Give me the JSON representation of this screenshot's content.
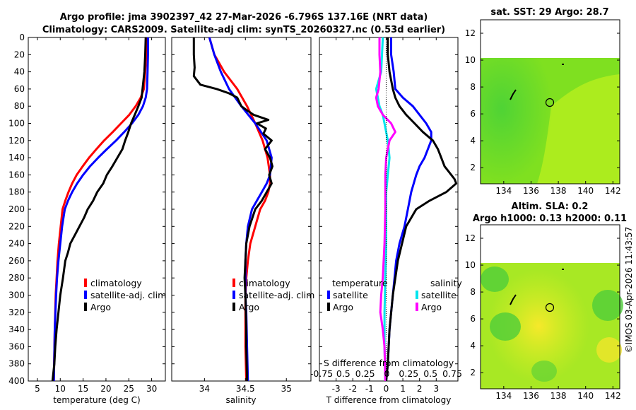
{
  "page": {
    "title_line1": "Argo profile: jma 3902397_42 27-Mar-2026 -6.796S 137.16E (NRT data)",
    "title_line2": "Climatology: CARS2009. Satellite-adj clim: synTS_20260327.nc (0.53d earlier)",
    "footer": "©IMOS 03-Apr-2026 11:43:57"
  },
  "colors": {
    "climatology": "#ff0000",
    "satellite": "#0000ff",
    "argo": "#000000",
    "sat_diff_s": "#00e5ee",
    "argo_diff_s": "#ff00ff"
  },
  "legend_temp": {
    "climatology": "climatology",
    "satellite": "satellite-adj. clim",
    "argo": "Argo"
  },
  "legend_sal": {
    "climatology": "climatology",
    "satellite": "satellite-adj. clim",
    "argo": "Argo"
  },
  "legend_diff": {
    "temp_header": "temperature",
    "sal_header": "salinity",
    "temp_satellite": "satellite",
    "temp_argo": "Argo",
    "sal_satellite": "satellite",
    "sal_argo": "Argo",
    "s_axis_title": "S difference from climatology",
    "s_axis_ticks": [
      "-0.75",
      "0.5",
      "0.25",
      "0",
      "0.25",
      "0.5",
      "0.75"
    ]
  },
  "maps": {
    "sst_title": "sat. SST: 29 Argo: 28.7",
    "sla_title_line1": "Altim. SLA: 0.2",
    "sla_title_line2": "Argo h1000: 0.13 h2000: 0.11",
    "x_ticks": [
      "134",
      "136",
      "138",
      "140",
      "142"
    ],
    "y_ticks": [
      "2",
      "4",
      "6",
      "8",
      "10",
      "12"
    ],
    "float_lon": 137.16,
    "float_lat": 6.796
  },
  "chart_data": [
    {
      "type": "line",
      "title": "",
      "xlabel": "temperature (deg C)",
      "ylabel": "",
      "xlim": [
        3,
        33
      ],
      "ylim": [
        400,
        0
      ],
      "xticks": [
        "5",
        "10",
        "15",
        "20",
        "25",
        "30"
      ],
      "xtick_values": [
        5,
        10,
        15,
        20,
        25,
        30
      ],
      "yticks": [
        "0",
        "20",
        "40",
        "60",
        "80",
        "100",
        "120",
        "140",
        "160",
        "180",
        "200",
        "220",
        "240",
        "260",
        "280",
        "300",
        "320",
        "340",
        "360",
        "380",
        "400"
      ],
      "series": [
        {
          "name": "climatology",
          "color": "#ff0000",
          "x": [
            28.9,
            28.8,
            28.6,
            28.3,
            27.6,
            26.5,
            25.1,
            23.3,
            21.5,
            19.6,
            17.9,
            16.3,
            14.9,
            13.6,
            12.6,
            11.8,
            11.1,
            10.5,
            10.1,
            9.7,
            9.4,
            9.2,
            9.0,
            8.8,
            8.6
          ],
          "y": [
            0,
            20,
            40,
            60,
            70,
            80,
            90,
            100,
            110,
            120,
            130,
            140,
            150,
            160,
            170,
            180,
            190,
            200,
            220,
            240,
            260,
            280,
            300,
            340,
            400
          ]
        },
        {
          "name": "satellite-adj. clim",
          "color": "#0000ff",
          "x": [
            29.2,
            29.2,
            29.1,
            29.0,
            28.7,
            28.1,
            27.1,
            25.7,
            24.0,
            22.2,
            20.2,
            18.3,
            16.5,
            15.0,
            13.7,
            12.6,
            11.7,
            11.0,
            10.4,
            10.0,
            9.6,
            9.3,
            9.1,
            8.8,
            8.6
          ],
          "y": [
            0,
            20,
            40,
            60,
            70,
            80,
            90,
            100,
            110,
            120,
            130,
            140,
            150,
            160,
            170,
            180,
            190,
            200,
            220,
            240,
            260,
            280,
            300,
            340,
            400
          ]
        },
        {
          "name": "Argo",
          "color": "#000000",
          "x": [
            28.7,
            28.6,
            28.4,
            28.0,
            27.8,
            27.1,
            26.3,
            25.5,
            24.9,
            24.2,
            23.6,
            22.5,
            21.4,
            20.2,
            19.4,
            18.1,
            17.2,
            16.0,
            15.2,
            14.2,
            13.2,
            12.2,
            11.7,
            11.1,
            10.6,
            10.0,
            9.6,
            9.2,
            8.9,
            8.7,
            8.5,
            8.3
          ],
          "y": [
            0,
            20,
            40,
            60,
            70,
            80,
            90,
            100,
            110,
            120,
            130,
            140,
            150,
            160,
            170,
            180,
            190,
            200,
            210,
            220,
            230,
            240,
            250,
            260,
            280,
            300,
            320,
            340,
            360,
            380,
            390,
            400
          ]
        }
      ]
    },
    {
      "type": "line",
      "title": "",
      "xlabel": "salinity",
      "ylabel": "",
      "xlim": [
        33.6,
        35.3
      ],
      "ylim": [
        400,
        0
      ],
      "xticks": [
        "34",
        "34.5",
        "35"
      ],
      "xtick_values": [
        34,
        34.5,
        35
      ],
      "series": [
        {
          "name": "climatology",
          "color": "#ff0000",
          "x": [
            34.06,
            34.12,
            34.24,
            34.4,
            34.52,
            34.62,
            34.71,
            34.77,
            34.8,
            34.8,
            34.78,
            34.74,
            34.68,
            34.62,
            34.56,
            34.53,
            34.51,
            34.5,
            34.5,
            34.5,
            34.51
          ],
          "y": [
            0,
            20,
            40,
            60,
            80,
            100,
            120,
            140,
            160,
            170,
            180,
            190,
            200,
            220,
            240,
            260,
            280,
            300,
            320,
            360,
            400
          ]
        },
        {
          "name": "satellite-adj. clim",
          "color": "#0000ff",
          "x": [
            34.06,
            34.12,
            34.2,
            34.3,
            34.45,
            34.62,
            34.76,
            34.82,
            34.8,
            34.76,
            34.7,
            34.64,
            34.58,
            34.53,
            34.51,
            34.5,
            34.5,
            34.51,
            34.52,
            34.53
          ],
          "y": [
            0,
            20,
            40,
            60,
            80,
            100,
            120,
            140,
            160,
            170,
            180,
            190,
            200,
            220,
            240,
            260,
            300,
            320,
            360,
            400
          ]
        },
        {
          "name": "Argo",
          "color": "#000000",
          "x": [
            33.87,
            33.87,
            33.88,
            33.87,
            33.95,
            34.15,
            34.3,
            34.4,
            34.45,
            34.52,
            34.6,
            34.78,
            34.64,
            34.75,
            34.72,
            34.82,
            34.74,
            34.8,
            34.83,
            34.79,
            34.82,
            34.76,
            34.7,
            34.62,
            34.55,
            34.51,
            34.5,
            34.49,
            34.5,
            34.51,
            34.51,
            34.52
          ],
          "y": [
            0,
            20,
            35,
            45,
            55,
            60,
            65,
            70,
            80,
            85,
            90,
            96,
            100,
            106,
            112,
            120,
            130,
            140,
            150,
            160,
            170,
            180,
            190,
            200,
            220,
            240,
            260,
            280,
            300,
            340,
            360,
            400
          ]
        }
      ]
    },
    {
      "type": "line",
      "title": "",
      "xlabel": "T difference from climatology",
      "ylabel": "",
      "xlim": [
        -4,
        4.3
      ],
      "ylim": [
        400,
        0
      ],
      "xticks": [
        "-3",
        "-2",
        "-1",
        "0",
        "1",
        "2",
        "3"
      ],
      "xtick_values": [
        -3,
        -2,
        -1,
        0,
        1,
        2,
        3
      ],
      "series": [
        {
          "name": "temperature satellite",
          "color": "#0000ff",
          "x": [
            0.3,
            0.3,
            0.45,
            0.55,
            1.0,
            1.6,
            2.0,
            2.4,
            2.7,
            2.7,
            2.5,
            2.3,
            2.0,
            1.8,
            1.5,
            1.3,
            1.1,
            0.8,
            0.6,
            0.5,
            0.4,
            0.3,
            0.2,
            0.1,
            0.0
          ],
          "y": [
            0,
            20,
            40,
            60,
            70,
            80,
            90,
            100,
            110,
            120,
            130,
            140,
            150,
            160,
            180,
            200,
            220,
            240,
            260,
            280,
            300,
            320,
            340,
            380,
            400
          ]
        },
        {
          "name": "temperature Argo",
          "color": "#000000",
          "x": [
            0.1,
            0.1,
            0.2,
            0.4,
            0.55,
            0.8,
            1.2,
            1.7,
            2.2,
            2.8,
            3.1,
            3.3,
            3.5,
            3.9,
            4.1,
            4.2,
            3.6,
            2.6,
            1.8,
            1.2,
            0.7,
            0.4,
            0.2,
            0.1,
            0.0
          ],
          "y": [
            0,
            20,
            40,
            60,
            70,
            80,
            90,
            100,
            110,
            120,
            130,
            140,
            150,
            160,
            165,
            170,
            180,
            190,
            200,
            220,
            260,
            300,
            340,
            380,
            400
          ]
        },
        {
          "name": "salinity satellite",
          "color": "#00e5ee",
          "x": [
            -0.2,
            -0.3,
            -0.6,
            -0.5,
            -0.4,
            -0.2,
            -0.1,
            0.1,
            0.2,
            0.1,
            0.0,
            0.0,
            0.0,
            -0.05,
            -0.1,
            -0.1,
            -0.05
          ],
          "y": [
            0,
            40,
            60,
            70,
            80,
            90,
            100,
            120,
            140,
            160,
            180,
            200,
            240,
            280,
            320,
            360,
            400
          ]
        },
        {
          "name": "salinity Argo",
          "color": "#ff00ff",
          "x": [
            -0.4,
            -0.4,
            -0.35,
            -0.45,
            -0.6,
            -0.5,
            -0.2,
            0.3,
            0.55,
            0.2,
            0.0,
            -0.05,
            -0.05,
            -0.1,
            -0.2,
            -0.3,
            -0.35,
            -0.2,
            -0.1,
            -0.05
          ],
          "y": [
            0,
            20,
            40,
            60,
            70,
            80,
            90,
            100,
            110,
            120,
            140,
            160,
            200,
            240,
            280,
            300,
            320,
            340,
            360,
            400
          ]
        }
      ]
    }
  ]
}
